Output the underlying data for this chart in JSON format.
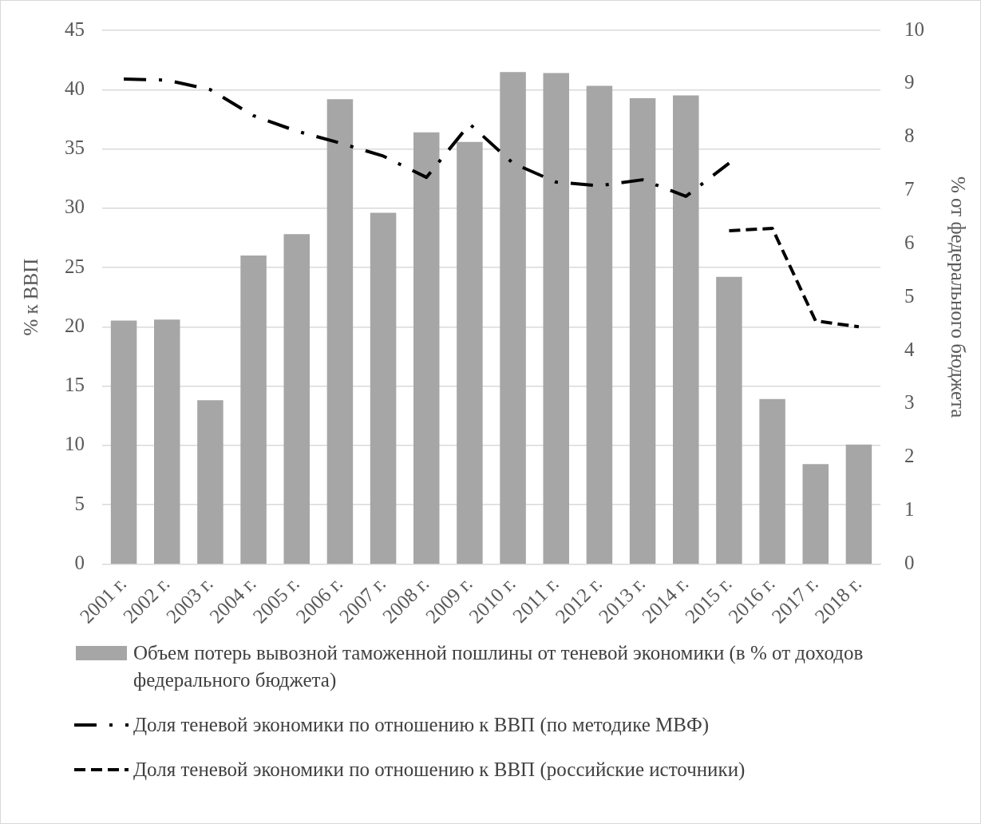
{
  "chart_data": {
    "type": "bar",
    "ylabel": "% к ВВП",
    "y2label": "% от федерального бюджета",
    "categories": [
      "2001 г.",
      "2002 г.",
      "2003 г.",
      "2004 г.",
      "2005 г.",
      "2006 г.",
      "2007 г.",
      "2008 г.",
      "2009 г.",
      "2010 г.",
      "2011 г.",
      "2012 г.",
      "2013 г.",
      "2014 г.",
      "2015 г.",
      "2016 г.",
      "2017 г.",
      "2018 г."
    ],
    "series": [
      {
        "axis": "y2",
        "name": "Объем потерь вывозной таможенной пошлины от теневой экономики (в % от доходов федерального бюджета)",
        "color": "#a6a6a6",
        "values": [
          4.56,
          4.58,
          3.07,
          5.78,
          6.18,
          8.71,
          6.58,
          8.09,
          7.91,
          9.22,
          9.2,
          8.96,
          8.73,
          8.78,
          5.38,
          3.09,
          1.87,
          2.24
        ]
      },
      {
        "type": "line",
        "name": "Доля теневой экономики по отношению к ВВП (по методике МВФ)",
        "color": "#000000",
        "line_style": "dashdot",
        "values": [
          40.9,
          40.8,
          40.0,
          37.8,
          36.5,
          35.5,
          34.4,
          32.6,
          37.1,
          33.8,
          32.2,
          31.9,
          32.4,
          31.0,
          33.8,
          null,
          null,
          null
        ]
      },
      {
        "type": "line",
        "name": "Доля теневой экономики по отношению к ВВП (российские источники)",
        "color": "#000000",
        "line_style": "dashed",
        "values": [
          null,
          null,
          null,
          null,
          null,
          null,
          null,
          null,
          null,
          null,
          null,
          null,
          null,
          null,
          28.1,
          28.3,
          20.5,
          20.0
        ]
      }
    ],
    "ylim": [
      0,
      45
    ],
    "yticks": [
      0,
      5,
      10,
      15,
      20,
      25,
      30,
      35,
      40,
      45
    ],
    "y2lim": [
      0,
      10
    ],
    "y2ticks": [
      0,
      1,
      2,
      3,
      4,
      5,
      6,
      7,
      8,
      9,
      10
    ],
    "grid": "y",
    "legend": "bottom",
    "marker": "none"
  }
}
